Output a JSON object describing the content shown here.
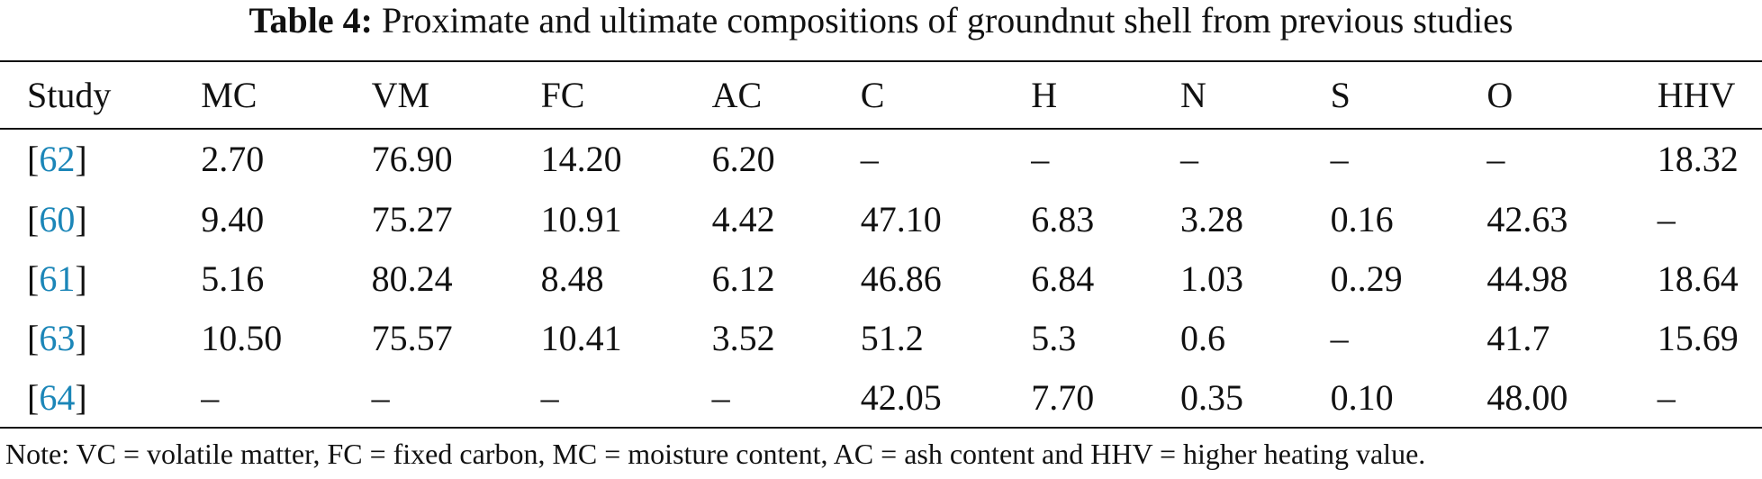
{
  "caption": {
    "label": "Table 4:",
    "text": "Proximate and ultimate compositions of groundnut shell from previous studies"
  },
  "table": {
    "headers": [
      "Study",
      "MC",
      "VM",
      "FC",
      "AC",
      "C",
      "H",
      "N",
      "S",
      "O",
      "HHV"
    ],
    "rows": [
      {
        "ref": "62",
        "values": [
          "2.70",
          "76.90",
          "14.20",
          "6.20",
          "–",
          "–",
          "–",
          "–",
          "–",
          "18.32"
        ]
      },
      {
        "ref": "60",
        "values": [
          "9.40",
          "75.27",
          "10.91",
          "4.42",
          "47.10",
          "6.83",
          "3.28",
          "0.16",
          "42.63",
          "–"
        ]
      },
      {
        "ref": "61",
        "values": [
          "5.16",
          "80.24",
          "8.48",
          "6.12",
          "46.86",
          "6.84",
          "1.03",
          "0..29",
          "44.98",
          "18.64"
        ]
      },
      {
        "ref": "63",
        "values": [
          "10.50",
          "75.57",
          "10.41",
          "3.52",
          "51.2",
          "5.3",
          "0.6",
          "–",
          "41.7",
          "15.69"
        ]
      },
      {
        "ref": "64",
        "values": [
          "–",
          "–",
          "–",
          "–",
          "42.05",
          "7.70",
          "0.35",
          "0.10",
          "48.00",
          "–"
        ]
      }
    ]
  },
  "note": "Note: VC = volatile matter, FC = fixed carbon, MC = moisture content, AC = ash content and HHV = higher heating value.",
  "colors": {
    "text": "#111111",
    "reference_link": "#1b86b8",
    "rule": "#111111"
  }
}
